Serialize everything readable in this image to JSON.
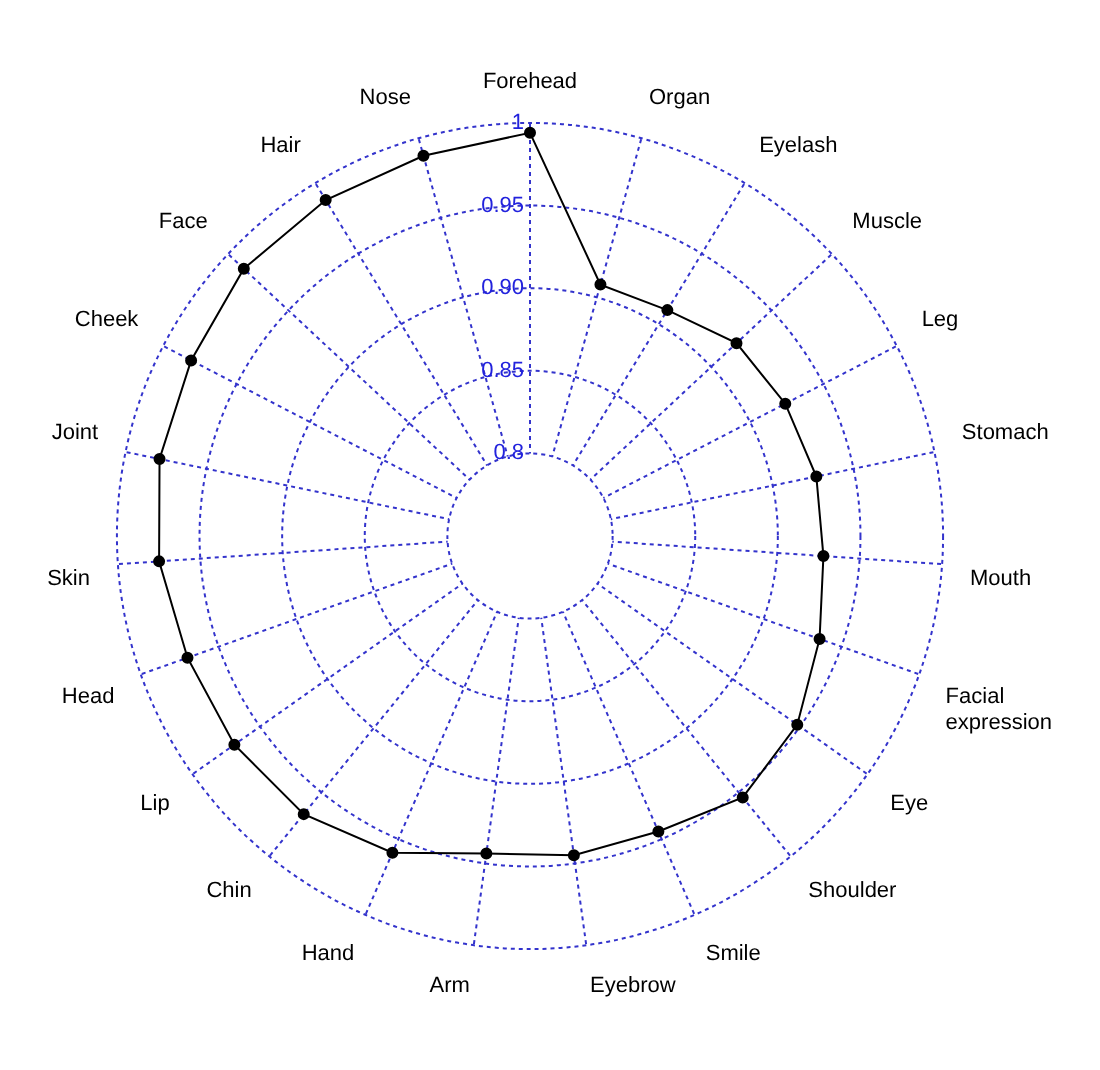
{
  "chart_data": {
    "type": "radar",
    "categories": [
      "Forehead",
      "Organ",
      "Eyelash",
      "Muscle",
      "Leg",
      "Stomach",
      "Mouth",
      "Facial expression",
      "Eye",
      "Shoulder",
      "Smile",
      "Eyebrow",
      "Arm",
      "Hand",
      "Chin",
      "Lip",
      "Head",
      "Skin",
      "Joint",
      "Cheek",
      "Face",
      "Hair",
      "Nose"
    ],
    "series": [
      {
        "color": "#000000",
        "values": [
          0.994,
          0.908,
          0.91,
          0.921,
          0.924,
          0.927,
          0.928,
          0.936,
          0.948,
          0.954,
          0.945,
          0.945,
          0.944,
          0.959,
          0.967,
          0.969,
          0.97,
          0.975,
          0.979,
          0.981,
          0.987,
          0.988,
          0.989
        ]
      }
    ],
    "ylim": [
      0.75,
      1
    ],
    "yticks": [
      0.8,
      0.85,
      {
        "value": 0.9,
        "label": "0.90"
      },
      0.95,
      1
    ],
    "grid": true,
    "marker": "circle",
    "line_style": "solid",
    "legend": false
  }
}
